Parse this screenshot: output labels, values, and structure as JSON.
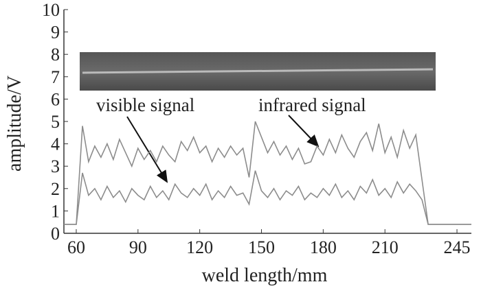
{
  "chart_data": {
    "type": "line",
    "x_label": "weld length/mm",
    "y_label": "amplitude/V",
    "annotations": [
      "visible signal",
      "infrared signal"
    ],
    "xlim": [
      54,
      252
    ],
    "xticks": [
      60,
      90,
      120,
      150,
      180,
      210,
      245
    ],
    "ylim": [
      0,
      10
    ],
    "yticks": [
      0,
      1,
      2,
      3,
      4,
      5,
      6,
      7,
      8,
      9,
      10
    ],
    "x": [
      54,
      57,
      60,
      63,
      66,
      69,
      72,
      75,
      78,
      81,
      84,
      87,
      90,
      93,
      96,
      99,
      102,
      105,
      108,
      111,
      114,
      117,
      120,
      123,
      126,
      129,
      132,
      135,
      138,
      141,
      144,
      147,
      150,
      153,
      156,
      159,
      162,
      165,
      168,
      171,
      174,
      177,
      180,
      183,
      186,
      189,
      192,
      195,
      198,
      201,
      204,
      207,
      210,
      213,
      216,
      219,
      222,
      225,
      228,
      231,
      234,
      237,
      240,
      243,
      246,
      249,
      252
    ],
    "series": [
      {
        "name": "infrared signal",
        "color": "#8c8c8c",
        "values": [
          0.4,
          0.4,
          0.4,
          4.8,
          3.2,
          3.9,
          3.4,
          4.0,
          3.3,
          4.2,
          3.6,
          3.0,
          3.8,
          3.3,
          3.7,
          3.2,
          3.9,
          3.5,
          3.2,
          4.1,
          3.7,
          4.3,
          3.6,
          3.9,
          3.2,
          3.8,
          3.4,
          3.9,
          3.5,
          3.8,
          2.5,
          5.0,
          4.3,
          3.6,
          4.1,
          3.5,
          3.9,
          3.3,
          3.8,
          3.1,
          3.2,
          3.9,
          3.5,
          4.2,
          3.6,
          4.4,
          3.8,
          3.4,
          4.1,
          4.5,
          3.7,
          4.9,
          3.6,
          4.3,
          3.4,
          4.6,
          3.8,
          4.4,
          2.4,
          0.4,
          0.4,
          0.4,
          0.4,
          0.4,
          0.4,
          0.4,
          0.4
        ]
      },
      {
        "name": "visible signal",
        "color": "#8c8c8c",
        "values": [
          0.4,
          0.4,
          0.4,
          2.7,
          1.7,
          2.0,
          1.5,
          2.1,
          1.6,
          1.9,
          1.4,
          2.0,
          1.7,
          1.5,
          2.1,
          1.6,
          1.9,
          1.5,
          2.2,
          1.8,
          1.6,
          2.0,
          1.7,
          2.2,
          1.5,
          1.9,
          1.6,
          2.1,
          1.7,
          1.8,
          1.3,
          2.8,
          1.9,
          1.6,
          2.0,
          1.5,
          1.9,
          1.7,
          2.1,
          1.5,
          1.8,
          1.6,
          2.0,
          1.7,
          2.2,
          1.6,
          1.9,
          1.5,
          2.1,
          1.8,
          2.4,
          1.7,
          2.0,
          1.6,
          2.3,
          1.8,
          2.2,
          1.9,
          1.5,
          0.4,
          0.4,
          0.4,
          0.4,
          0.4,
          0.4,
          0.4,
          0.4
        ]
      }
    ]
  }
}
